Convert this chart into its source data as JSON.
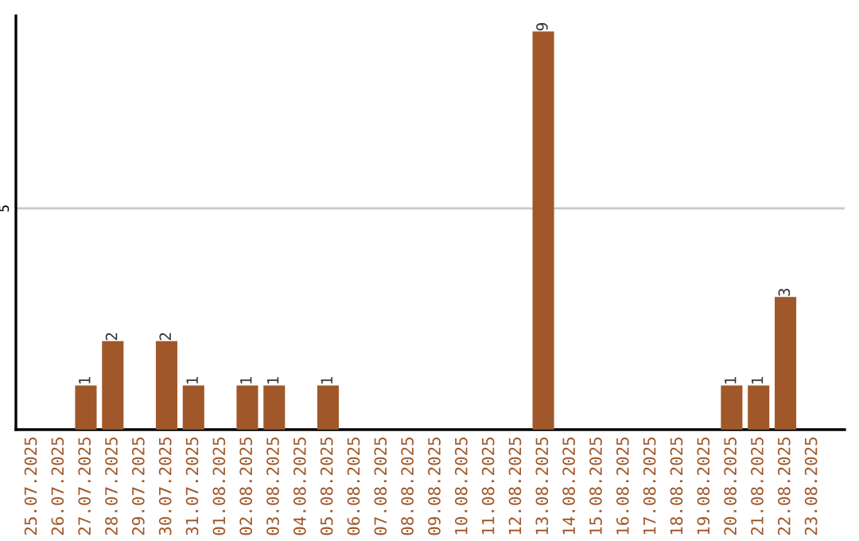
{
  "chart_data": {
    "type": "bar",
    "categories": [
      "25.07.2025",
      "26.07.2025",
      "27.07.2025",
      "28.07.2025",
      "29.07.2025",
      "30.07.2025",
      "31.07.2025",
      "01.08.2025",
      "02.08.2025",
      "03.08.2025",
      "04.08.2025",
      "05.08.2025",
      "06.08.2025",
      "07.08.2025",
      "08.08.2025",
      "09.08.2025",
      "10.08.2025",
      "11.08.2025",
      "12.08.2025",
      "13.08.2025",
      "14.08.2025",
      "15.08.2025",
      "16.08.2025",
      "17.08.2025",
      "18.08.2025",
      "19.08.2025",
      "20.08.2025",
      "21.08.2025",
      "22.08.2025",
      "23.08.2025"
    ],
    "values": [
      0,
      0,
      1,
      2,
      0,
      2,
      1,
      0,
      1,
      1,
      0,
      1,
      0,
      0,
      0,
      0,
      0,
      0,
      0,
      9,
      0,
      0,
      0,
      0,
      0,
      0,
      1,
      1,
      3,
      0
    ],
    "value_labels": [
      null,
      null,
      "1",
      "2",
      null,
      "2",
      "1",
      null,
      "1",
      "1",
      null,
      "1",
      null,
      null,
      null,
      null,
      null,
      null,
      null,
      "9",
      null,
      null,
      null,
      null,
      null,
      null,
      "1",
      "1",
      "3",
      null
    ],
    "color": "#a0582a",
    "ylim": [
      0,
      9.35
    ],
    "yticks": [
      5
    ],
    "grid": "y",
    "legend": false
  }
}
